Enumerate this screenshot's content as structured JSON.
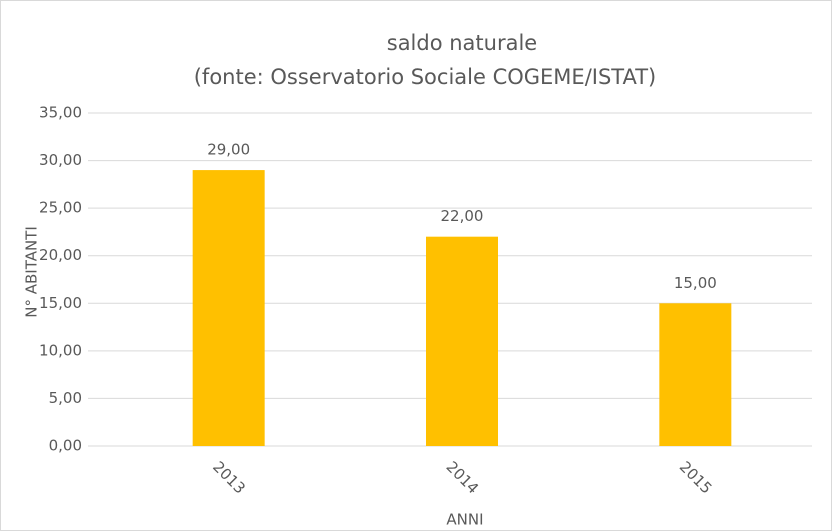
{
  "chart_data": {
    "type": "bar",
    "title": "saldo naturale",
    "subtitle": "(fonte: Osservatorio Sociale COGEME/ISTAT)",
    "x_label": "ANNI",
    "y_label": "N° ABITANTI",
    "categories": [
      "2013",
      "2014",
      "2015"
    ],
    "values": [
      29,
      22,
      15
    ],
    "value_labels": [
      "29,00",
      "22,00",
      "15,00"
    ],
    "color": "#ffc000",
    "ylim": [
      0,
      35
    ],
    "yticks": [
      {
        "value": 0,
        "label": "0,00"
      },
      {
        "value": 5,
        "label": "5,00"
      },
      {
        "value": 10,
        "label": "10,00"
      },
      {
        "value": 15,
        "label": "15,00"
      },
      {
        "value": 20,
        "label": "20,00"
      },
      {
        "value": 25,
        "label": "25,00"
      },
      {
        "value": 30,
        "label": "30,00"
      },
      {
        "value": 35,
        "label": "35,00"
      }
    ],
    "grid": true
  }
}
